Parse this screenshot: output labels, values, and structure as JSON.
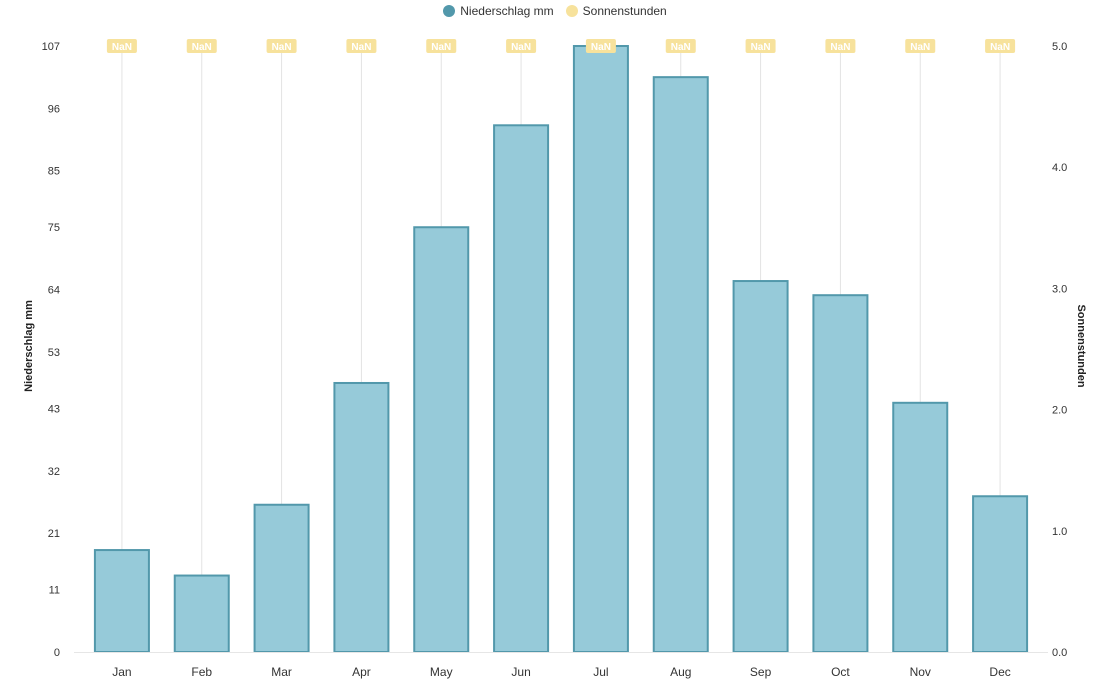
{
  "legend": {
    "precip_label": "Niederschlag mm",
    "sun_label": "Sonnenstunden"
  },
  "colors": {
    "bar_fill": "#96cad9",
    "bar_stroke": "#5298ab",
    "sun_badge": "#f7e29c",
    "grid": "#e3e3e3",
    "axis_text": "#333333"
  },
  "chart_data": {
    "type": "bar",
    "categories": [
      "Jan",
      "Feb",
      "Mar",
      "Apr",
      "May",
      "Jun",
      "Jul",
      "Aug",
      "Sep",
      "Oct",
      "Nov",
      "Dec"
    ],
    "series": [
      {
        "name": "Niederschlag mm",
        "axis": "left",
        "values": [
          18,
          13.5,
          26,
          47.5,
          75,
          93,
          107,
          101.5,
          65.5,
          63,
          44,
          27.5
        ]
      },
      {
        "name": "Sonnenstunden",
        "axis": "right",
        "values": [
          null,
          null,
          null,
          null,
          null,
          null,
          null,
          null,
          null,
          null,
          null,
          null
        ],
        "labels": [
          "NaN",
          "NaN",
          "NaN",
          "NaN",
          "NaN",
          "NaN",
          "NaN",
          "NaN",
          "NaN",
          "NaN",
          "NaN",
          "NaN"
        ]
      }
    ],
    "ylabel": "Niederschlag mm",
    "y2label": "Sonnenstunden",
    "ylim": [
      0,
      107
    ],
    "y2lim": [
      0,
      5
    ],
    "yticks": [
      "0",
      "11",
      "21",
      "32",
      "43",
      "53",
      "64",
      "75",
      "85",
      "96",
      "107"
    ],
    "y2ticks": [
      "0.0",
      "1.0",
      "2.0",
      "3.0",
      "4.0",
      "5.0"
    ],
    "grid": "vertical",
    "legend_position": "top-center"
  }
}
